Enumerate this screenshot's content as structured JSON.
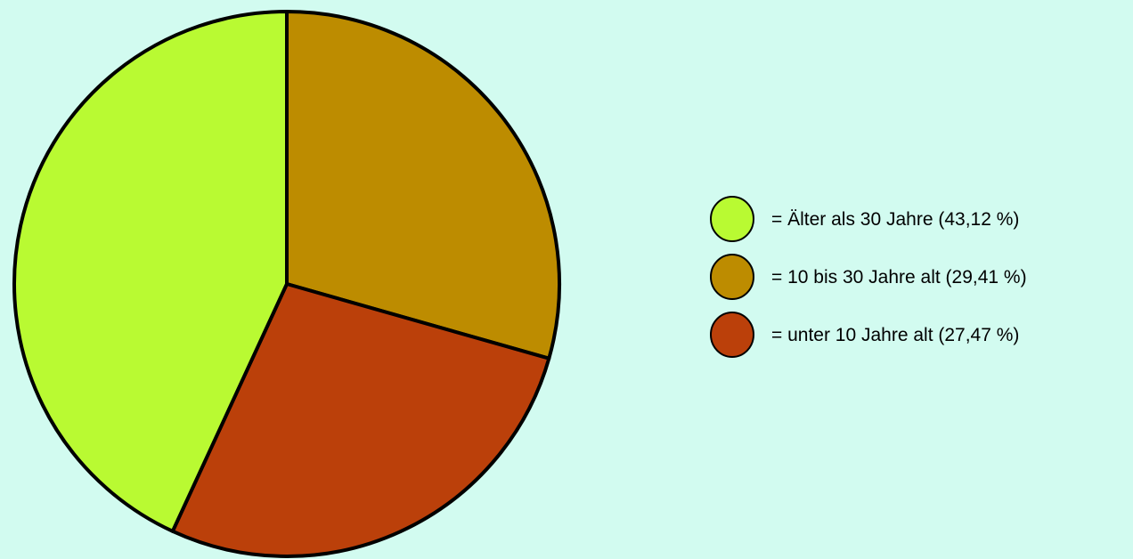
{
  "chart_data": {
    "type": "pie",
    "title": "",
    "slices": [
      {
        "label": "= 10 bis 30 Jahre alt (29,41 %)",
        "value": 29.41,
        "color": "#bd8c00"
      },
      {
        "label": "= unter 10 Jahre alt (27,47 %)",
        "value": 27.47,
        "color": "#bb400a"
      },
      {
        "label": "= Älter als 30 Jahre (43,12 %)",
        "value": 43.12,
        "color": "#b9fa32"
      }
    ],
    "legend": {
      "placement": "right",
      "entries": [
        {
          "label": "= Älter als 30 Jahre (43,12 %)",
          "color": "#b9fa32"
        },
        {
          "label": "= 10 bis 30 Jahre alt (29,41 %)",
          "color": "#bd8c00"
        },
        {
          "label": "= unter 10 Jahre alt (27,47 %)",
          "color": "#bb400a"
        }
      ]
    },
    "start_angle": "top",
    "direction": "clockwise",
    "background_color": "#d2fbf0",
    "outline_color": "#000000"
  }
}
